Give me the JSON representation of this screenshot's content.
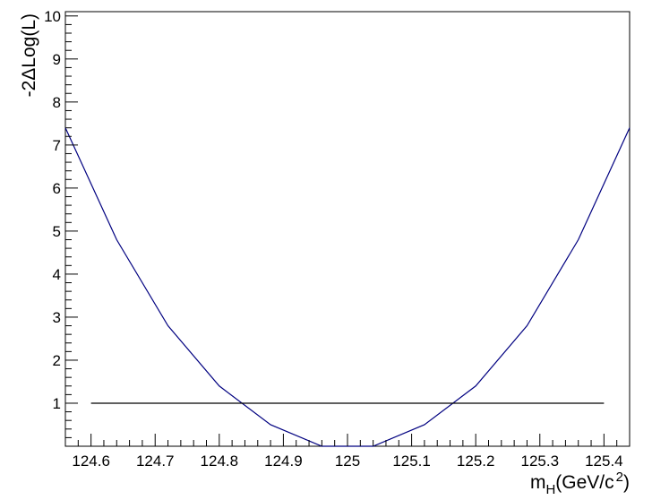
{
  "chart_data": {
    "type": "line",
    "title": "",
    "xlabel": "m_H(GeV/c^2)",
    "xlabel_parts": {
      "base": "m",
      "sub": "H",
      "paren": "(GeV/c",
      "sup": "2",
      "close": ")"
    },
    "ylabel": "-2ΔLog(L)",
    "xlim": [
      124.56,
      125.44
    ],
    "ylim": [
      0,
      10.1
    ],
    "x_ticks": [
      124.6,
      124.7,
      124.8,
      124.9,
      125.0,
      125.1,
      125.2,
      125.3,
      125.4
    ],
    "x_tick_labels": [
      "124.6",
      "124.7",
      "124.8",
      "124.9",
      "125",
      "125.1",
      "125.2",
      "125.3",
      "125.4"
    ],
    "y_ticks": [
      1,
      2,
      3,
      4,
      5,
      6,
      7,
      8,
      9,
      10
    ],
    "y_tick_labels": [
      "1",
      "2",
      "3",
      "4",
      "5",
      "6",
      "7",
      "8",
      "9",
      "10"
    ],
    "grid": false,
    "series": [
      {
        "color": "#000080",
        "x": [
          124.56,
          124.64,
          124.72,
          124.8,
          124.88,
          124.96,
          125.04,
          125.12,
          125.2,
          125.28,
          125.36,
          125.44
        ],
        "values": [
          7.4,
          4.8,
          2.8,
          1.4,
          0.5,
          0.0,
          0.0,
          0.5,
          1.4,
          2.8,
          4.8,
          7.4
        ]
      },
      {
        "color": "#000000",
        "x": [
          124.6,
          125.4
        ],
        "values": [
          1,
          1
        ]
      }
    ]
  }
}
